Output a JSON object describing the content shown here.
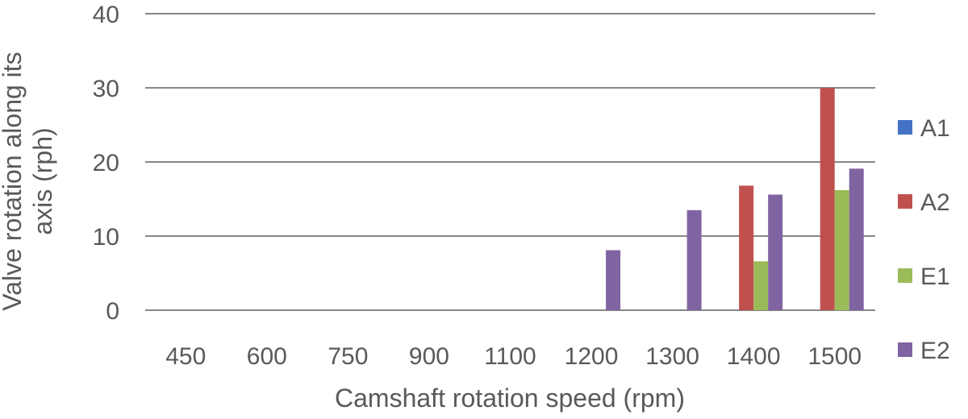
{
  "chart_data": {
    "type": "bar",
    "title": "",
    "xlabel": "Camshaft rotation speed (rpm)",
    "ylabel": "Valve rotation along its axis (rph)",
    "categories": [
      "450",
      "600",
      "750",
      "900",
      "1100",
      "1200",
      "1300",
      "1400",
      "1500"
    ],
    "ylim": [
      0,
      40
    ],
    "yticks": [
      0,
      10,
      20,
      30,
      40
    ],
    "grid": true,
    "legend_position": "right",
    "series": [
      {
        "name": "A1",
        "color": "#4472C4",
        "values": [
          0,
          0,
          0,
          0,
          0,
          0,
          0,
          0,
          0
        ]
      },
      {
        "name": "A2",
        "color": "#C0504D",
        "values": [
          0,
          0,
          0,
          0,
          0,
          0,
          0,
          16.8,
          30
        ]
      },
      {
        "name": "E1",
        "color": "#9BBB59",
        "values": [
          0,
          0,
          0,
          0,
          0,
          0,
          0,
          6.6,
          16.2
        ]
      },
      {
        "name": "E2",
        "color": "#8064A2",
        "values": [
          0,
          0,
          0,
          0,
          0,
          8.1,
          13.5,
          15.6,
          19.1
        ]
      }
    ]
  }
}
